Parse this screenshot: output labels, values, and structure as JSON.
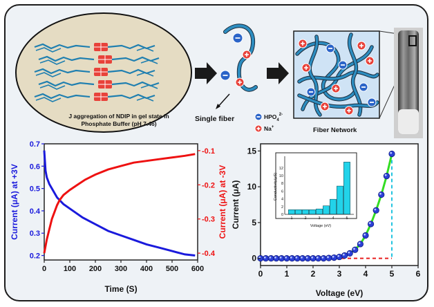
{
  "top": {
    "ellipse_caption_line1": "J aggregation of NDIP in gel state in",
    "ellipse_caption_line2": "Phosphate Buffer (pH 7.46)",
    "single_fiber_label": "Single fiber",
    "fiber_network_label": "Fiber Network",
    "legend": {
      "anion_label": "HPO",
      "anion_sub": "4",
      "anion_sup": "2-",
      "cation_label": "Na",
      "cation_sup": "+"
    },
    "colors": {
      "ellipse_fill": "#e5dcc3",
      "fiber": "#1f7fb0",
      "network_box": "#cfe3f5",
      "aggregate": "#e8423a",
      "ion_negative": "#2b64c8",
      "ion_positive": "#e8423a",
      "arrow": "#1a1a1a"
    }
  },
  "chart_data": [
    {
      "type": "line",
      "xlabel": "Time (S)",
      "ylabel": "Current (μA) at +3V",
      "y2label": "Current (μA) at -3V",
      "xlim": [
        0,
        600
      ],
      "ylim": [
        0.18,
        0.7
      ],
      "y2lim": [
        -0.42,
        -0.08
      ],
      "xticks": [
        "0",
        "100",
        "200",
        "300",
        "400",
        "500",
        "600"
      ],
      "yticks": [
        "0.2",
        "0.3",
        "0.4",
        "0.5",
        "0.6",
        "0.7"
      ],
      "y2ticks": [
        "-0.4",
        "-0.3",
        "-0.2",
        "-0.1"
      ],
      "series": [
        {
          "axis": "left",
          "color": "#1a1adc",
          "x": [
            0,
            5,
            10,
            20,
            30,
            50,
            75,
            100,
            150,
            200,
            250,
            300,
            350,
            400,
            450,
            500,
            550,
            590
          ],
          "values": [
            0.67,
            0.58,
            0.55,
            0.52,
            0.5,
            0.46,
            0.43,
            0.41,
            0.37,
            0.34,
            0.31,
            0.29,
            0.27,
            0.25,
            0.235,
            0.22,
            0.205,
            0.2
          ]
        },
        {
          "axis": "right",
          "color": "#ee1111",
          "x": [
            0,
            10,
            20,
            30,
            40,
            50,
            60,
            75,
            100,
            130,
            160,
            200,
            250,
            300,
            350,
            400,
            450,
            500,
            550,
            590
          ],
          "values": [
            -0.4,
            -0.36,
            -0.33,
            -0.3,
            -0.28,
            -0.26,
            -0.245,
            -0.23,
            -0.215,
            -0.2,
            -0.185,
            -0.17,
            -0.155,
            -0.145,
            -0.135,
            -0.13,
            -0.125,
            -0.12,
            -0.115,
            -0.11
          ]
        }
      ]
    },
    {
      "type": "scatter",
      "xlabel": "Voltage (eV)",
      "ylabel": "Current (μA)",
      "xlim": [
        0,
        6
      ],
      "ylim": [
        -1,
        16
      ],
      "xticks": [
        "0",
        "1",
        "2",
        "3",
        "4",
        "5",
        "6"
      ],
      "yticks": [
        "0",
        "5",
        "10",
        "15"
      ],
      "x": [
        0,
        0.2,
        0.4,
        0.6,
        0.8,
        1.0,
        1.2,
        1.4,
        1.6,
        1.8,
        2.0,
        2.2,
        2.4,
        2.6,
        2.8,
        3.0,
        3.2,
        3.4,
        3.6,
        3.8,
        4.0,
        4.2,
        4.4,
        4.6,
        4.8,
        5.0
      ],
      "values": [
        0,
        0,
        0,
        0,
        0,
        0,
        0,
        0,
        0,
        0,
        0,
        0,
        0,
        0.05,
        0.1,
        0.2,
        0.4,
        0.7,
        1.2,
        2.0,
        3.2,
        4.8,
        6.7,
        8.9,
        11.5,
        14.6
      ],
      "point_color": "#2b3fd6",
      "fit_color": "#33dd22",
      "baseline_color": "#e82020",
      "vline_color": "#22c4e0",
      "vline_x": 5
    },
    {
      "type": "bar",
      "ylabel": "Conductivity(μS)",
      "xlabel": "Voltage (eV)",
      "categories": [
        "1",
        "1.5",
        "2",
        "2.5",
        "3",
        "3.5",
        "4",
        "4.5",
        "5"
      ],
      "values": [
        1.2,
        1.2,
        1.2,
        1.2,
        1.4,
        2.2,
        3.9,
        7.3,
        13.5
      ],
      "xlim": [
        0.5,
        5.5
      ],
      "ylim": [
        0,
        15
      ],
      "xticks": [
        "1",
        "2",
        "3",
        "4",
        "5"
      ],
      "yticks": [
        "0",
        "2",
        "4",
        "6",
        "8",
        "10",
        "12"
      ],
      "bar_color": "#22d3ea"
    }
  ]
}
